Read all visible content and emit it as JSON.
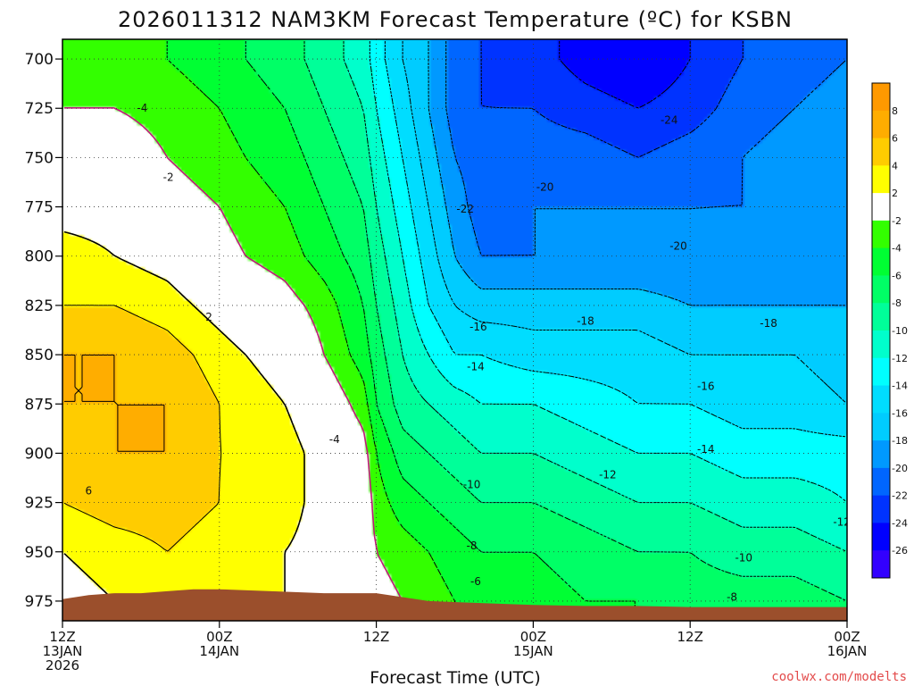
{
  "chart_data": {
    "type": "heatmap",
    "title": "2026011312 NAM3KM Forecast Temperature (ºC) for KSBN",
    "xlabel": "Forecast Time (UTC)",
    "ylabel": "",
    "credit": "coolwx.com/modelts",
    "y_axis": {
      "unit": "hPa",
      "ticks": [
        "700",
        "725",
        "750",
        "775",
        "800",
        "825",
        "850",
        "875",
        "900",
        "925",
        "950",
        "975"
      ],
      "range": [
        690,
        985
      ],
      "inverted": true
    },
    "x_axis": {
      "unit": "hours since 12Z 13JAN 2026",
      "range": [
        0,
        60
      ],
      "ticks": [
        {
          "hour": 0,
          "l1": "12Z",
          "l2": "13JAN",
          "l3": "2026"
        },
        {
          "hour": 12,
          "l1": "00Z",
          "l2": "14JAN",
          "l3": ""
        },
        {
          "hour": 24,
          "l1": "12Z",
          "l2": "",
          "l3": ""
        },
        {
          "hour": 36,
          "l1": "00Z",
          "l2": "15JAN",
          "l3": ""
        },
        {
          "hour": 48,
          "l1": "12Z",
          "l2": "",
          "l3": ""
        },
        {
          "hour": 60,
          "l1": "00Z",
          "l2": "16JAN",
          "l3": ""
        }
      ]
    },
    "grid": true,
    "surface_pressure": {
      "hours": [
        0,
        2,
        4,
        6,
        8,
        10,
        12,
        16,
        20,
        24,
        26,
        28,
        32,
        36,
        40,
        44,
        48,
        52,
        56,
        60
      ],
      "pressure": [
        974,
        972,
        971,
        971,
        970,
        969,
        969,
        970,
        971,
        971,
        973,
        975,
        976,
        977,
        977.5,
        977.5,
        978,
        978,
        978,
        978
      ]
    },
    "temperature_field": {
      "hours": [
        0,
        4,
        8,
        12,
        14,
        17,
        20,
        23,
        24,
        26,
        28,
        30,
        32,
        36,
        40,
        44,
        48,
        52,
        56,
        60
      ],
      "pressure": [
        700,
        725,
        750,
        775,
        800,
        825,
        850,
        875,
        900,
        925,
        950,
        975
      ],
      "values_degC": [
        [
          -3,
          -3,
          -4,
          -5,
          -6,
          -7,
          -9,
          -11,
          -13,
          -16,
          -18,
          -21,
          -22,
          -23,
          -25,
          -26,
          -24,
          -22,
          -21,
          -20
        ],
        [
          -2,
          -2,
          -3,
          -4,
          -5,
          -6,
          -8,
          -10,
          -12,
          -15,
          -18,
          -21,
          -22,
          -22,
          -23,
          -24,
          -23,
          -21,
          -20,
          -19
        ],
        [
          0,
          0,
          -2,
          -3,
          -4,
          -5,
          -7,
          -9,
          -11,
          -14,
          -17,
          -20,
          -21,
          -21,
          -21,
          -22,
          -21,
          -20,
          -19,
          -19
        ],
        [
          1,
          1,
          -1,
          -2,
          -3,
          -4,
          -6,
          -8,
          -10,
          -13,
          -16,
          -19,
          -21,
          -20,
          -20,
          -20,
          -20,
          -20,
          -19,
          -19
        ],
        [
          3,
          2,
          1,
          -1,
          -2,
          -3,
          -5,
          -7,
          -9,
          -12,
          -15,
          -18,
          -20,
          -20,
          -20,
          -20,
          -20,
          -19,
          -19,
          -19
        ],
        [
          4,
          4,
          3,
          1,
          0,
          -1,
          -3,
          -6,
          -8,
          -11,
          -14,
          -16,
          -17,
          -17,
          -17,
          -17,
          -18,
          -18,
          -18,
          -18
        ],
        [
          6,
          6,
          5,
          3,
          2,
          1,
          -2,
          -5,
          -7,
          -10,
          -12,
          -14,
          -14,
          -15,
          -15,
          -15,
          -16,
          -16,
          -16,
          -17
        ],
        [
          6,
          6,
          6,
          4,
          3,
          2,
          0,
          -3,
          -6,
          -9,
          -10,
          -11,
          -12,
          -12,
          -13,
          -14,
          -14,
          -15,
          -15,
          -16
        ],
        [
          5,
          6,
          6,
          4,
          4,
          3,
          1,
          -1,
          -4,
          -7,
          -8,
          -9,
          -10,
          -10,
          -11,
          -12,
          -12,
          -13,
          -13,
          -13
        ],
        [
          4,
          5,
          5,
          4,
          3,
          3,
          1,
          0,
          -3,
          -5,
          -6,
          -7,
          -8,
          -8,
          -9,
          -10,
          -10,
          -11,
          -11,
          -12
        ],
        [
          2,
          3,
          4,
          3,
          3,
          2,
          1,
          0,
          -2,
          -3,
          -4,
          -5,
          -6,
          -6,
          -7,
          -8,
          -8,
          -9,
          -9,
          -10
        ],
        [
          1,
          2,
          3,
          3,
          3,
          2,
          1,
          0,
          -1,
          -2,
          -3,
          -4,
          -5,
          -5,
          -6,
          -6,
          -7,
          -7,
          -7,
          -8
        ]
      ]
    },
    "colorbar": {
      "ticks": [
        "8",
        "6",
        "4",
        "2",
        "-2",
        "-4",
        "-6",
        "-8",
        "-10",
        "-12",
        "-14",
        "-16",
        "-18",
        "-20",
        "-22",
        "-24",
        "-26"
      ],
      "bins": [
        {
          "lo": 8,
          "hi": 10,
          "color": "#ff9900"
        },
        {
          "lo": 6,
          "hi": 8,
          "color": "#ffad00"
        },
        {
          "lo": 4,
          "hi": 6,
          "color": "#ffcc00"
        },
        {
          "lo": 2,
          "hi": 4,
          "color": "#ffff00"
        },
        {
          "lo": -2,
          "hi": 2,
          "color": "#ffffff"
        },
        {
          "lo": -4,
          "hi": -2,
          "color": "#33ff00"
        },
        {
          "lo": -6,
          "hi": -4,
          "color": "#00ff33"
        },
        {
          "lo": -8,
          "hi": -6,
          "color": "#00ff66"
        },
        {
          "lo": -10,
          "hi": -8,
          "color": "#00ff99"
        },
        {
          "lo": -12,
          "hi": -10,
          "color": "#00ffcc"
        },
        {
          "lo": -14,
          "hi": -12,
          "color": "#00ffff"
        },
        {
          "lo": -16,
          "hi": -14,
          "color": "#00ddff"
        },
        {
          "lo": -18,
          "hi": -16,
          "color": "#00ccff"
        },
        {
          "lo": -20,
          "hi": -18,
          "color": "#0099ff"
        },
        {
          "lo": -22,
          "hi": -20,
          "color": "#0066ff"
        },
        {
          "lo": -24,
          "hi": -22,
          "color": "#0033ff"
        },
        {
          "lo": -26,
          "hi": -24,
          "color": "#0000ff"
        },
        {
          "lo": -28,
          "hi": -26,
          "color": "#3300ff"
        }
      ]
    },
    "contour_labels": [
      {
        "text": "-4",
        "hour": 6.1,
        "pressure": 725
      },
      {
        "text": "-2",
        "hour": 8.1,
        "pressure": 760
      },
      {
        "text": "2",
        "hour": 11.2,
        "pressure": 831
      },
      {
        "text": "6",
        "hour": 2.0,
        "pressure": 919
      },
      {
        "text": "-4",
        "hour": 20.8,
        "pressure": 893
      },
      {
        "text": "-22",
        "hour": 30.8,
        "pressure": 776
      },
      {
        "text": "-20",
        "hour": 36.9,
        "pressure": 765
      },
      {
        "text": "-24",
        "hour": 46.4,
        "pressure": 731
      },
      {
        "text": "-20",
        "hour": 47.1,
        "pressure": 795
      },
      {
        "text": "-16",
        "hour": 31.8,
        "pressure": 836
      },
      {
        "text": "-18",
        "hour": 40.0,
        "pressure": 833
      },
      {
        "text": "-18",
        "hour": 54.0,
        "pressure": 834
      },
      {
        "text": "-14",
        "hour": 31.6,
        "pressure": 856
      },
      {
        "text": "-16",
        "hour": 49.2,
        "pressure": 866
      },
      {
        "text": "-14",
        "hour": 49.2,
        "pressure": 898
      },
      {
        "text": "-12",
        "hour": 41.7,
        "pressure": 911
      },
      {
        "text": "-10",
        "hour": 31.3,
        "pressure": 916
      },
      {
        "text": "-12",
        "hour": 59.6,
        "pressure": 935
      },
      {
        "text": "-8",
        "hour": 31.3,
        "pressure": 947
      },
      {
        "text": "-10",
        "hour": 52.1,
        "pressure": 953
      },
      {
        "text": "-6",
        "hour": 31.6,
        "pressure": 965
      },
      {
        "text": "-8",
        "hour": 51.2,
        "pressure": 973
      }
    ]
  }
}
